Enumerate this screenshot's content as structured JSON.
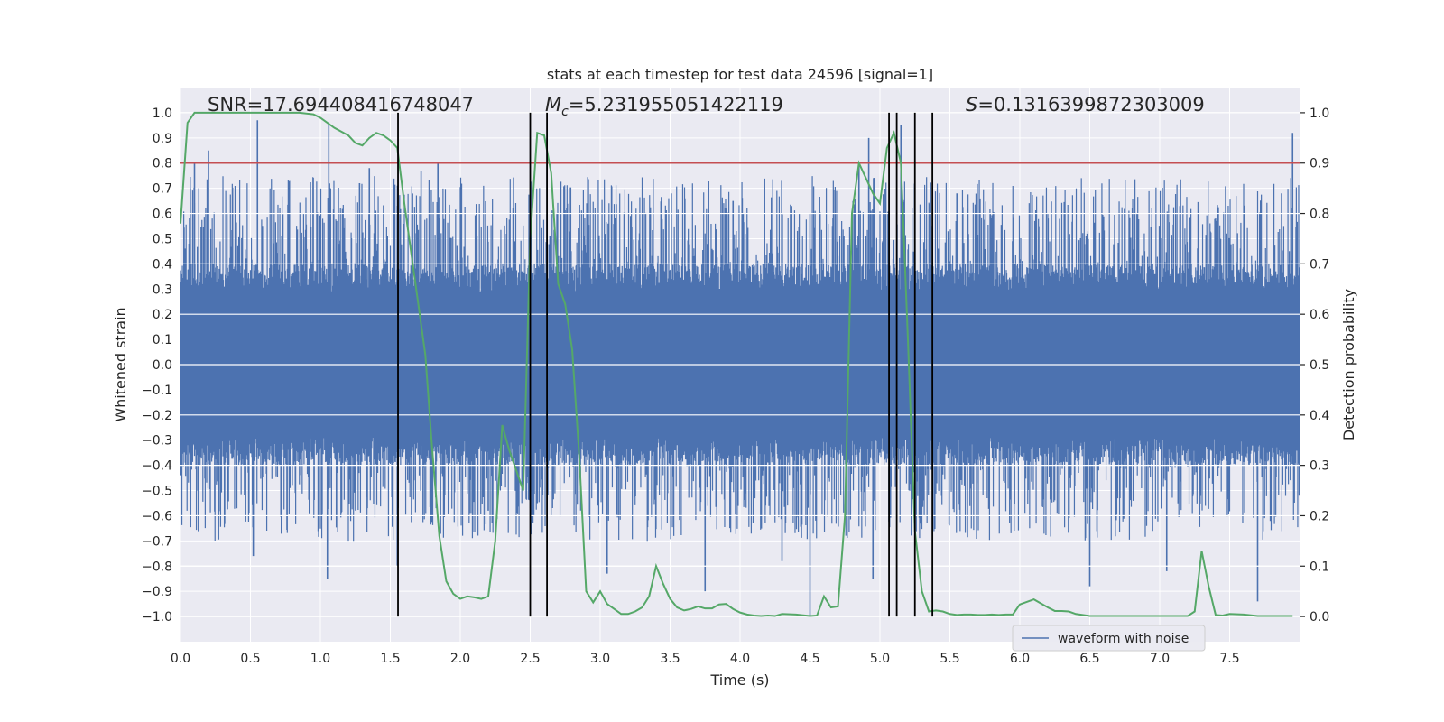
{
  "chart_data": {
    "type": "line",
    "title": "stats at each timestep for test data 24596 [signal=1]",
    "xlabel": "Time (s)",
    "ylabel_left": "Whitened strain",
    "ylabel_right": "Detection probability",
    "xlim": [
      0.0,
      8.0
    ],
    "ylim_left": [
      -1.1,
      1.1
    ],
    "ylim_right": [
      -0.05,
      1.05
    ],
    "xticks": [
      "0.0",
      "0.5",
      "1.0",
      "1.5",
      "2.0",
      "2.5",
      "3.0",
      "3.5",
      "4.0",
      "4.5",
      "5.0",
      "5.5",
      "6.0",
      "6.5",
      "7.0",
      "7.5"
    ],
    "xtick_values": [
      0.0,
      0.5,
      1.0,
      1.5,
      2.0,
      2.5,
      3.0,
      3.5,
      4.0,
      4.5,
      5.0,
      5.5,
      6.0,
      6.5,
      7.0,
      7.5
    ],
    "yticks_left": [
      "1.0",
      "0.9",
      "0.8",
      "0.7",
      "0.6",
      "0.5",
      "0.4",
      "0.3",
      "0.2",
      "0.1",
      "0.0",
      "−0.1",
      "−0.2",
      "−0.3",
      "−0.4",
      "−0.5",
      "−0.6",
      "−0.7",
      "−0.8",
      "−0.9",
      "−1.0"
    ],
    "ytick_values_left": [
      1.0,
      0.9,
      0.8,
      0.7,
      0.6,
      0.5,
      0.4,
      0.3,
      0.2,
      0.1,
      0.0,
      -0.1,
      -0.2,
      -0.3,
      -0.4,
      -0.5,
      -0.6,
      -0.7,
      -0.8,
      -0.9,
      -1.0
    ],
    "yticks_right": [
      "1.0",
      "0.9",
      "0.8",
      "0.7",
      "0.6",
      "0.5",
      "0.4",
      "0.3",
      "0.2",
      "0.1",
      "0.0"
    ],
    "ytick_values_right": [
      1.0,
      0.9,
      0.8,
      0.7,
      0.6,
      0.5,
      0.4,
      0.3,
      0.2,
      0.1,
      0.0
    ],
    "grid": true,
    "legend": {
      "position": "bottom-right",
      "entries": [
        {
          "label": "waveform with noise",
          "color": "#4c72b0"
        }
      ]
    },
    "annotations": {
      "snr": {
        "label": "SNR=",
        "value": "17.694408416748047"
      },
      "mc": {
        "label": "M",
        "sub": "c",
        "value": "=5.231955051422119"
      },
      "s": {
        "label": "S",
        "value": "=0.1316399872303009"
      }
    },
    "threshold": {
      "value": 0.9,
      "axis": "right",
      "color": "#c44e52"
    },
    "event_lines": {
      "x": [
        1.555,
        2.5,
        2.62,
        5.065,
        5.12,
        5.25,
        5.375
      ],
      "ymin": -1.0,
      "ymax": 1.0,
      "color": "#000000"
    },
    "detection_probability": {
      "name": "detection probability",
      "color": "#55a868",
      "x": [
        0.0,
        0.05,
        0.1,
        0.2,
        0.3,
        0.5,
        0.7,
        0.85,
        0.95,
        1.0,
        1.05,
        1.1,
        1.2,
        1.25,
        1.3,
        1.35,
        1.4,
        1.45,
        1.5,
        1.55,
        1.6,
        1.65,
        1.7,
        1.75,
        1.8,
        1.85,
        1.9,
        1.95,
        2.0,
        2.05,
        2.1,
        2.15,
        2.2,
        2.25,
        2.3,
        2.35,
        2.4,
        2.45,
        2.5,
        2.55,
        2.6,
        2.65,
        2.7,
        2.75,
        2.8,
        2.85,
        2.9,
        2.95,
        3.0,
        3.05,
        3.1,
        3.15,
        3.2,
        3.25,
        3.3,
        3.35,
        3.4,
        3.45,
        3.5,
        3.55,
        3.6,
        3.65,
        3.7,
        3.75,
        3.8,
        3.85,
        3.9,
        3.95,
        4.0,
        4.05,
        4.1,
        4.15,
        4.2,
        4.25,
        4.3,
        4.4,
        4.5,
        4.55,
        4.6,
        4.65,
        4.7,
        4.75,
        4.8,
        4.85,
        4.9,
        4.95,
        5.0,
        5.05,
        5.1,
        5.15,
        5.2,
        5.25,
        5.3,
        5.35,
        5.4,
        5.45,
        5.5,
        5.55,
        5.6,
        5.65,
        5.7,
        5.75,
        5.8,
        5.85,
        5.9,
        5.95,
        6.0,
        6.1,
        6.2,
        6.25,
        6.3,
        6.35,
        6.4,
        6.45,
        6.5,
        6.6,
        6.7,
        6.8,
        7.0,
        7.2,
        7.25,
        7.3,
        7.35,
        7.4,
        7.45,
        7.5,
        7.6,
        7.7,
        7.95
      ],
      "y": [
        0.78,
        0.98,
        1.0,
        1.0,
        1.0,
        1.0,
        1.0,
        1.0,
        0.997,
        0.99,
        0.98,
        0.97,
        0.955,
        0.94,
        0.935,
        0.95,
        0.96,
        0.955,
        0.945,
        0.93,
        0.82,
        0.72,
        0.62,
        0.52,
        0.33,
        0.16,
        0.07,
        0.045,
        0.035,
        0.04,
        0.038,
        0.035,
        0.04,
        0.15,
        0.38,
        0.33,
        0.29,
        0.25,
        0.75,
        0.96,
        0.955,
        0.88,
        0.66,
        0.62,
        0.53,
        0.32,
        0.05,
        0.028,
        0.05,
        0.025,
        0.015,
        0.005,
        0.005,
        0.01,
        0.018,
        0.04,
        0.1,
        0.065,
        0.035,
        0.018,
        0.012,
        0.015,
        0.02,
        0.016,
        0.016,
        0.024,
        0.025,
        0.015,
        0.008,
        0.004,
        0.002,
        0.001,
        0.002,
        0.001,
        0.005,
        0.004,
        0.001,
        0.002,
        0.04,
        0.018,
        0.02,
        0.2,
        0.8,
        0.9,
        0.87,
        0.84,
        0.82,
        0.93,
        0.96,
        0.9,
        0.55,
        0.17,
        0.05,
        0.01,
        0.012,
        0.01,
        0.005,
        0.003,
        0.004,
        0.004,
        0.003,
        0.003,
        0.004,
        0.003,
        0.004,
        0.004,
        0.024,
        0.034,
        0.018,
        0.011,
        0.011,
        0.01,
        0.005,
        0.003,
        0.001,
        0.001,
        0.001,
        0.001,
        0.001,
        0.001,
        0.01,
        0.13,
        0.06,
        0.003,
        0.002,
        0.005,
        0.004,
        0.001,
        0.001
      ]
    },
    "waveform": {
      "name": "waveform with noise",
      "color": "#4c72b0",
      "seed": 24596,
      "n_points": 2400,
      "band_amplitude": 0.4,
      "spikes_up": [
        [
          0.07,
          0.7
        ],
        [
          0.1,
          0.8
        ],
        [
          0.2,
          0.85
        ],
        [
          0.55,
          0.97
        ],
        [
          1.06,
          0.96
        ],
        [
          1.28,
          0.72
        ],
        [
          1.35,
          0.78
        ],
        [
          1.55,
          0.63
        ],
        [
          1.72,
          0.77
        ],
        [
          1.84,
          0.8
        ],
        [
          2.62,
          0.9
        ],
        [
          3.95,
          0.65
        ],
        [
          4.5,
          0.6
        ],
        [
          4.85,
          0.8
        ],
        [
          4.92,
          0.9
        ],
        [
          5.15,
          0.95
        ],
        [
          5.55,
          0.68
        ],
        [
          7.95,
          0.92
        ]
      ],
      "spikes_down": [
        [
          0.52,
          -0.76
        ],
        [
          1.05,
          -0.85
        ],
        [
          1.55,
          -0.8
        ],
        [
          2.2,
          -0.58
        ],
        [
          2.55,
          -0.55
        ],
        [
          3.05,
          -0.83
        ],
        [
          3.75,
          -0.9
        ],
        [
          4.3,
          -0.78
        ],
        [
          4.5,
          -1.0
        ],
        [
          4.95,
          -0.85
        ],
        [
          6.5,
          -0.88
        ],
        [
          7.05,
          -0.82
        ],
        [
          7.7,
          -0.94
        ]
      ]
    }
  }
}
